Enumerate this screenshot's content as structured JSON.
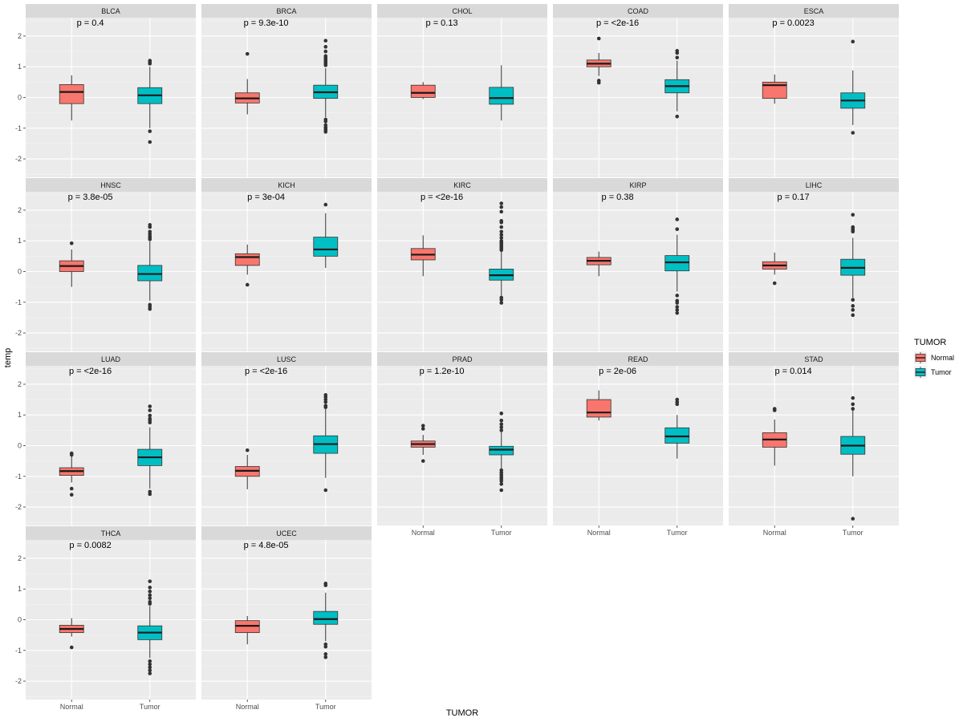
{
  "chart_data": {
    "type": "boxplot",
    "xlabel": "TUMOR",
    "ylabel": "temp",
    "ylim": [
      -2.6,
      2.6
    ],
    "yticks": [
      -2,
      -1,
      0,
      1,
      2
    ],
    "categories": [
      "Normal",
      "Tumor"
    ],
    "legend": {
      "title": "TUMOR",
      "position": "right",
      "items": [
        {
          "label": "Normal",
          "color": "#F8766D"
        },
        {
          "label": "Tumor",
          "color": "#00BFC4"
        }
      ]
    },
    "panels": [
      {
        "name": "BLCA",
        "p": "p = 0.4",
        "normal": {
          "q1": -0.2,
          "median": 0.18,
          "q3": 0.42,
          "wlo": -0.75,
          "whi": 0.72,
          "outliers": []
        },
        "tumor": {
          "q1": -0.2,
          "median": 0.07,
          "q3": 0.32,
          "wlo": -1.0,
          "whi": 1.0,
          "outliers": [
            1.2,
            1.15,
            1.1,
            -1.1,
            -1.45
          ]
        }
      },
      {
        "name": "BRCA",
        "p": "p = 9.3e-10",
        "normal": {
          "q1": -0.18,
          "median": -0.03,
          "q3": 0.15,
          "wlo": -0.55,
          "whi": 0.6,
          "outliers": [
            1.42
          ]
        },
        "tumor": {
          "q1": -0.03,
          "median": 0.17,
          "q3": 0.4,
          "wlo": -0.65,
          "whi": 0.95,
          "outliers": [
            1.85,
            1.65,
            1.5,
            1.35,
            1.3,
            1.25,
            1.2,
            1.15,
            1.1,
            1.05,
            -0.72,
            -0.78,
            -0.9,
            -0.97,
            -1.02,
            -1.07,
            -1.12
          ]
        }
      },
      {
        "name": "CHOL",
        "p": "p = 0.13",
        "normal": {
          "q1": 0.0,
          "median": 0.15,
          "q3": 0.4,
          "wlo": -0.05,
          "whi": 0.5,
          "outliers": []
        },
        "tumor": {
          "q1": -0.22,
          "median": -0.02,
          "q3": 0.33,
          "wlo": -0.75,
          "whi": 1.05,
          "outliers": []
        }
      },
      {
        "name": "COAD",
        "p": "p = <2e-16",
        "normal": {
          "q1": 1.0,
          "median": 1.1,
          "q3": 1.22,
          "wlo": 0.7,
          "whi": 1.45,
          "outliers": [
            1.92,
            0.55,
            0.48
          ]
        },
        "tumor": {
          "q1": 0.15,
          "median": 0.37,
          "q3": 0.58,
          "wlo": -0.45,
          "whi": 1.2,
          "outliers": [
            1.52,
            1.45,
            1.3,
            -0.62
          ]
        }
      },
      {
        "name": "ESCA",
        "p": "p = 0.0023",
        "normal": {
          "q1": -0.03,
          "median": 0.4,
          "q3": 0.5,
          "wlo": -0.2,
          "whi": 0.75,
          "outliers": []
        },
        "tumor": {
          "q1": -0.35,
          "median": -0.1,
          "q3": 0.15,
          "wlo": -0.9,
          "whi": 0.88,
          "outliers": [
            1.82,
            -1.15
          ]
        }
      },
      {
        "name": "HNSC",
        "p": "p = 3.8e-05",
        "normal": {
          "q1": 0.0,
          "median": 0.18,
          "q3": 0.35,
          "wlo": -0.5,
          "whi": 0.72,
          "outliers": [
            0.92
          ]
        },
        "tumor": {
          "q1": -0.3,
          "median": -0.08,
          "q3": 0.2,
          "wlo": -0.95,
          "whi": 0.98,
          "outliers": [
            1.52,
            1.45,
            1.3,
            1.22,
            1.15,
            1.1,
            1.05,
            -1.08,
            -1.15,
            -1.22
          ]
        }
      },
      {
        "name": "KICH",
        "p": "p = 3e-04",
        "normal": {
          "q1": 0.2,
          "median": 0.47,
          "q3": 0.58,
          "wlo": -0.1,
          "whi": 0.88,
          "outliers": [
            -0.43
          ]
        },
        "tumor": {
          "q1": 0.5,
          "median": 0.72,
          "q3": 1.12,
          "wlo": 0.12,
          "whi": 1.9,
          "outliers": [
            2.18
          ]
        }
      },
      {
        "name": "KIRC",
        "p": "p = <2e-16",
        "normal": {
          "q1": 0.38,
          "median": 0.55,
          "q3": 0.75,
          "wlo": -0.15,
          "whi": 1.18,
          "outliers": []
        },
        "tumor": {
          "q1": -0.28,
          "median": -0.12,
          "q3": 0.08,
          "wlo": -0.8,
          "whi": 0.65,
          "outliers": [
            2.22,
            2.1,
            1.95,
            1.65,
            1.6,
            1.45,
            1.3,
            1.2,
            1.1,
            1.0,
            0.95,
            0.9,
            0.85,
            0.8,
            0.75,
            0.7,
            -0.85,
            -0.92,
            -1.02
          ]
        }
      },
      {
        "name": "KIRP",
        "p": "p = 0.38",
        "normal": {
          "q1": 0.22,
          "median": 0.35,
          "q3": 0.46,
          "wlo": -0.15,
          "whi": 0.65,
          "outliers": []
        },
        "tumor": {
          "q1": 0.02,
          "median": 0.3,
          "q3": 0.52,
          "wlo": -0.65,
          "whi": 1.2,
          "outliers": [
            1.7,
            1.38,
            -0.78,
            -0.95,
            -1.02,
            -1.15,
            -1.25,
            -1.35
          ]
        }
      },
      {
        "name": "LIHC",
        "p": "p = 0.17",
        "normal": {
          "q1": 0.08,
          "median": 0.2,
          "q3": 0.32,
          "wlo": -0.1,
          "whi": 0.62,
          "outliers": [
            -0.38
          ]
        },
        "tumor": {
          "q1": -0.12,
          "median": 0.12,
          "q3": 0.4,
          "wlo": -0.85,
          "whi": 1.1,
          "outliers": [
            1.85,
            1.45,
            1.4,
            1.35,
            1.3,
            -0.92,
            -1.12,
            -1.25,
            -1.42
          ]
        }
      },
      {
        "name": "LUAD",
        "p": "p = <2e-16",
        "normal": {
          "q1": -0.97,
          "median": -0.83,
          "q3": -0.72,
          "wlo": -1.2,
          "whi": -0.35,
          "outliers": [
            -0.25,
            -0.3,
            -1.4,
            -1.6
          ]
        },
        "tumor": {
          "q1": -0.65,
          "median": -0.38,
          "q3": -0.12,
          "wlo": -1.4,
          "whi": 0.6,
          "outliers": [
            1.28,
            1.15,
            0.98,
            0.88,
            0.82,
            0.75,
            -1.5,
            -1.58
          ]
        }
      },
      {
        "name": "LUSC",
        "p": "p = <2e-16",
        "normal": {
          "q1": -1.0,
          "median": -0.82,
          "q3": -0.68,
          "wlo": -1.42,
          "whi": -0.3,
          "outliers": [
            -0.15
          ]
        },
        "tumor": {
          "q1": -0.25,
          "median": 0.05,
          "q3": 0.32,
          "wlo": -1.05,
          "whi": 1.2,
          "outliers": [
            1.65,
            1.58,
            1.5,
            1.42,
            1.3,
            1.25,
            -1.45
          ]
        }
      },
      {
        "name": "PRAD",
        "p": "p = 1.2e-10",
        "normal": {
          "q1": -0.05,
          "median": 0.05,
          "q3": 0.15,
          "wlo": -0.3,
          "whi": 0.35,
          "outliers": [
            0.65,
            0.55,
            -0.5
          ]
        },
        "tumor": {
          "q1": -0.3,
          "median": -0.13,
          "q3": -0.02,
          "wlo": -0.75,
          "whi": 0.45,
          "outliers": [
            1.05,
            0.82,
            0.7,
            0.6,
            0.5,
            -0.8,
            -0.88,
            -0.95,
            -1.02,
            -1.08,
            -1.15,
            -1.25,
            -1.45
          ]
        }
      },
      {
        "name": "READ",
        "p": "p = 2e-06",
        "normal": {
          "q1": 0.93,
          "median": 1.08,
          "q3": 1.5,
          "wlo": 0.82,
          "whi": 1.8,
          "outliers": []
        },
        "tumor": {
          "q1": 0.08,
          "median": 0.3,
          "q3": 0.58,
          "wlo": -0.42,
          "whi": 1.0,
          "outliers": [
            1.5,
            1.42,
            1.35
          ]
        }
      },
      {
        "name": "STAD",
        "p": "p = 0.014",
        "normal": {
          "q1": -0.05,
          "median": 0.2,
          "q3": 0.42,
          "wlo": -0.65,
          "whi": 0.85,
          "outliers": [
            1.2,
            1.15
          ]
        },
        "tumor": {
          "q1": -0.28,
          "median": 0.0,
          "q3": 0.3,
          "wlo": -1.0,
          "whi": 1.18,
          "outliers": [
            1.55,
            1.35,
            1.2,
            -2.38
          ]
        }
      },
      {
        "name": "THCA",
        "p": "p = 0.0082",
        "normal": {
          "q1": -0.42,
          "median": -0.3,
          "q3": -0.18,
          "wlo": -0.55,
          "whi": 0.05,
          "outliers": [
            -0.9
          ]
        },
        "tumor": {
          "q1": -0.65,
          "median": -0.42,
          "q3": -0.2,
          "wlo": -1.25,
          "whi": 0.45,
          "outliers": [
            1.25,
            1.05,
            0.92,
            0.8,
            0.7,
            0.58,
            0.52,
            -1.35,
            -1.45,
            -1.55,
            -1.65,
            -1.75
          ]
        }
      },
      {
        "name": "UCEC",
        "p": "p = 4.8e-05",
        "normal": {
          "q1": -0.42,
          "median": -0.2,
          "q3": -0.03,
          "wlo": -0.8,
          "whi": 0.12,
          "outliers": []
        },
        "tumor": {
          "q1": -0.15,
          "median": 0.02,
          "q3": 0.27,
          "wlo": -0.7,
          "whi": 0.88,
          "outliers": [
            1.18,
            1.12,
            -0.8,
            -0.88,
            -1.12,
            -1.22
          ]
        }
      }
    ]
  }
}
